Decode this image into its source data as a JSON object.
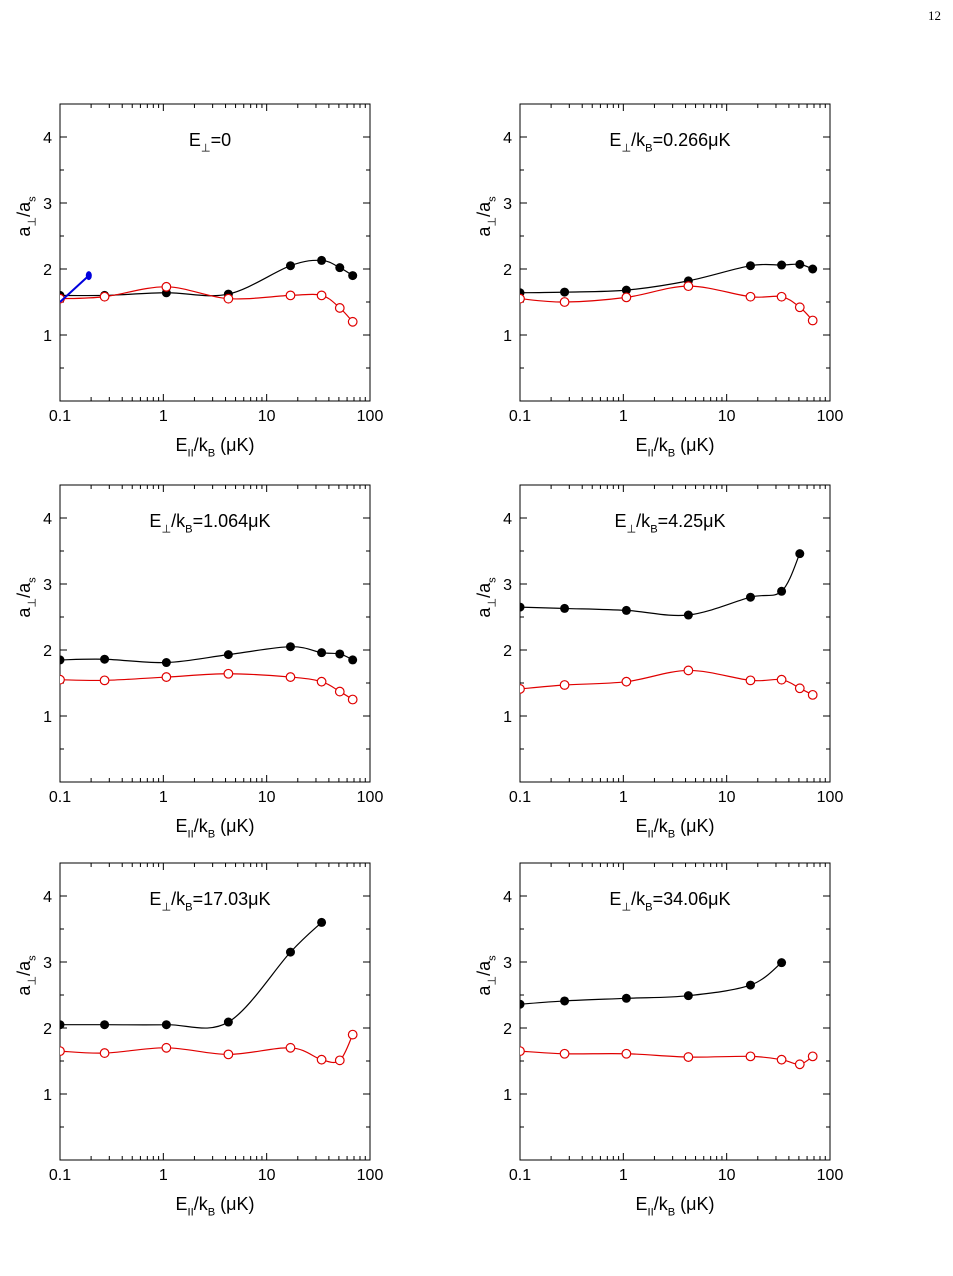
{
  "page": {
    "number": "12"
  },
  "chart_data": [
    {
      "type": "line",
      "title": "E⊥=0",
      "xlabel": "E||/kB (μK)",
      "ylabel": "a⊥/as",
      "xscale": "log",
      "xlim": [
        0.1,
        100
      ],
      "ylim": [
        0,
        4.5
      ],
      "xticks": [
        "0.1",
        "1",
        "10",
        "100"
      ],
      "yticks": [
        "1",
        "2",
        "3",
        "4"
      ],
      "series": [
        {
          "color": "#000000",
          "marker": "filled-circle",
          "x": [
            0.1,
            0.27,
            1.07,
            4.26,
            17,
            34,
            51,
            68
          ],
          "y": [
            1.6,
            1.6,
            1.64,
            1.62,
            2.05,
            2.13,
            2.02,
            1.9
          ]
        },
        {
          "color": "#e00000",
          "marker": "open-circle",
          "x": [
            0.1,
            0.27,
            1.07,
            4.26,
            17,
            34,
            51,
            68
          ],
          "y": [
            1.55,
            1.58,
            1.73,
            1.55,
            1.6,
            1.6,
            1.41,
            1.2
          ]
        },
        {
          "color": "#0000dd",
          "marker": "filled-circle",
          "style": "segment",
          "x": [
            0.1,
            0.19
          ],
          "y": [
            1.5,
            1.9
          ]
        }
      ]
    },
    {
      "type": "line",
      "title": "E⊥/kB=0.266μK",
      "xlabel": "E||/kB (μK)",
      "ylabel": "a⊥/as",
      "xscale": "log",
      "xlim": [
        0.1,
        100
      ],
      "ylim": [
        0,
        4.5
      ],
      "xticks": [
        "0.1",
        "1",
        "10",
        "100"
      ],
      "yticks": [
        "1",
        "2",
        "3",
        "4"
      ],
      "series": [
        {
          "color": "#000000",
          "marker": "filled-circle",
          "x": [
            0.1,
            0.27,
            1.07,
            4.26,
            17,
            34,
            51,
            68
          ],
          "y": [
            1.64,
            1.65,
            1.68,
            1.82,
            2.05,
            2.06,
            2.07,
            2.0
          ]
        },
        {
          "color": "#e00000",
          "marker": "open-circle",
          "x": [
            0.1,
            0.27,
            1.07,
            4.26,
            17,
            34,
            51,
            68
          ],
          "y": [
            1.55,
            1.5,
            1.57,
            1.74,
            1.58,
            1.58,
            1.42,
            1.22
          ]
        }
      ]
    },
    {
      "type": "line",
      "title": "E⊥/kB=1.064μK",
      "xlabel": "E||/kB (μK)",
      "ylabel": "a⊥/as",
      "xscale": "log",
      "xlim": [
        0.1,
        100
      ],
      "ylim": [
        0,
        4.5
      ],
      "xticks": [
        "0.1",
        "1",
        "10",
        "100"
      ],
      "yticks": [
        "1",
        "2",
        "3",
        "4"
      ],
      "series": [
        {
          "color": "#000000",
          "marker": "filled-circle",
          "x": [
            0.1,
            0.27,
            1.07,
            4.26,
            17,
            34,
            51,
            68
          ],
          "y": [
            1.85,
            1.86,
            1.81,
            1.93,
            2.05,
            1.96,
            1.94,
            1.85
          ]
        },
        {
          "color": "#e00000",
          "marker": "open-circle",
          "x": [
            0.1,
            0.27,
            1.07,
            4.26,
            17,
            34,
            51,
            68
          ],
          "y": [
            1.55,
            1.54,
            1.59,
            1.64,
            1.59,
            1.52,
            1.37,
            1.25
          ]
        }
      ]
    },
    {
      "type": "line",
      "title": "E⊥/kB=4.25μK",
      "xlabel": "E||/kB (μK)",
      "ylabel": "a⊥/as",
      "xscale": "log",
      "xlim": [
        0.1,
        100
      ],
      "ylim": [
        0,
        4.5
      ],
      "xticks": [
        "0.1",
        "1",
        "10",
        "100"
      ],
      "yticks": [
        "1",
        "2",
        "3",
        "4"
      ],
      "series": [
        {
          "color": "#000000",
          "marker": "filled-circle",
          "x": [
            0.1,
            0.27,
            1.07,
            4.26,
            17,
            34,
            51
          ],
          "y": [
            2.65,
            2.63,
            2.6,
            2.53,
            2.8,
            2.89,
            3.46
          ]
        },
        {
          "color": "#e00000",
          "marker": "open-circle",
          "x": [
            0.1,
            0.27,
            1.07,
            4.26,
            17,
            34,
            51,
            68
          ],
          "y": [
            1.41,
            1.47,
            1.52,
            1.69,
            1.54,
            1.55,
            1.42,
            1.32
          ]
        }
      ]
    },
    {
      "type": "line",
      "title": "E⊥/kB=17.03μK",
      "xlabel": "E||/kB (μK)",
      "ylabel": "a⊥/as",
      "xscale": "log",
      "xlim": [
        0.1,
        100
      ],
      "ylim": [
        0,
        4.5
      ],
      "xticks": [
        "0.1",
        "1",
        "10",
        "100"
      ],
      "yticks": [
        "1",
        "2",
        "3",
        "4"
      ],
      "series": [
        {
          "color": "#000000",
          "marker": "filled-circle",
          "x": [
            0.1,
            0.27,
            1.07,
            4.26,
            17,
            34
          ],
          "y": [
            2.05,
            2.05,
            2.05,
            2.09,
            3.15,
            3.6
          ]
        },
        {
          "color": "#e00000",
          "marker": "open-circle",
          "x": [
            0.1,
            0.27,
            1.07,
            4.26,
            17,
            34,
            51,
            68
          ],
          "y": [
            1.65,
            1.62,
            1.7,
            1.6,
            1.7,
            1.52,
            1.51,
            1.9
          ]
        }
      ]
    },
    {
      "type": "line",
      "title": "E⊥/kB=34.06μK",
      "xlabel": "E||/kB (μK)",
      "ylabel": "a⊥/as",
      "xscale": "log",
      "xlim": [
        0.1,
        100
      ],
      "ylim": [
        0,
        4.5
      ],
      "xticks": [
        "0.1",
        "1",
        "10",
        "100"
      ],
      "yticks": [
        "1",
        "2",
        "3",
        "4"
      ],
      "series": [
        {
          "color": "#000000",
          "marker": "filled-circle",
          "x": [
            0.1,
            0.27,
            1.07,
            4.26,
            17,
            34
          ],
          "y": [
            2.36,
            2.41,
            2.45,
            2.49,
            2.65,
            2.99
          ]
        },
        {
          "color": "#e00000",
          "marker": "open-circle",
          "x": [
            0.1,
            0.27,
            1.07,
            4.26,
            17,
            34,
            51,
            68
          ],
          "y": [
            1.65,
            1.61,
            1.61,
            1.56,
            1.57,
            1.52,
            1.45,
            1.57
          ]
        }
      ]
    }
  ]
}
